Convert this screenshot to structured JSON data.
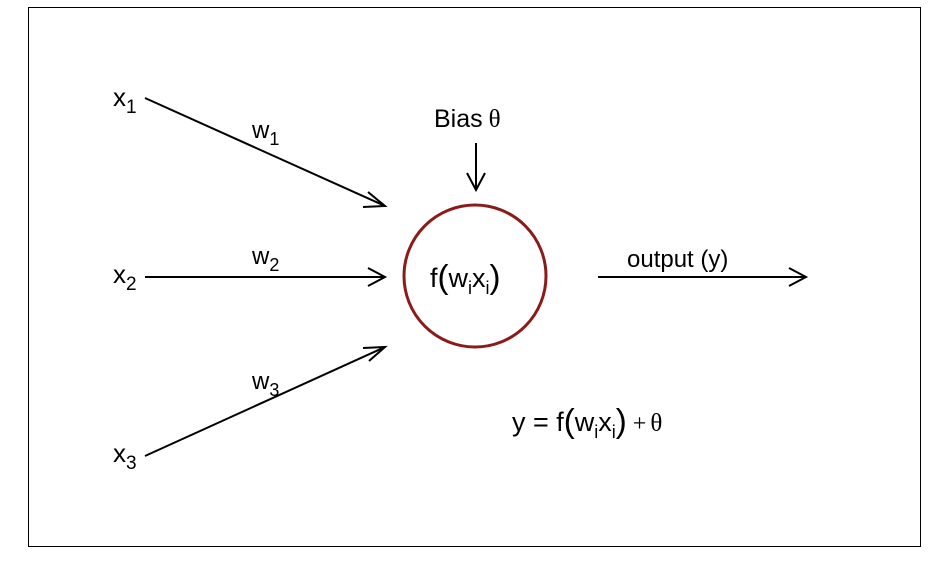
{
  "inputs": [
    {
      "base": "x",
      "sub": "1"
    },
    {
      "base": "x",
      "sub": "2"
    },
    {
      "base": "x",
      "sub": "3"
    }
  ],
  "weights": [
    {
      "base": "w",
      "sub": "1"
    },
    {
      "base": "w",
      "sub": "2"
    },
    {
      "base": "w",
      "sub": "3"
    }
  ],
  "bias": {
    "label": "Bias",
    "symbol": "θ"
  },
  "neuron": {
    "f": "f",
    "w": "w",
    "w_sub": "i",
    "x": "x",
    "x_sub": "i",
    "open_paren": "(",
    "close_paren": ")"
  },
  "output": {
    "label": "output (y)"
  },
  "equation": {
    "lhs": "y = f",
    "w": "w",
    "w_sub": "i",
    "x": "x",
    "x_sub": "i",
    "open_paren": "(",
    "close_paren": ")",
    "plus": "+",
    "theta": "θ"
  },
  "colors": {
    "neuron_stroke": "#8b1a1a",
    "line": "#000000",
    "frame": "#000000"
  }
}
